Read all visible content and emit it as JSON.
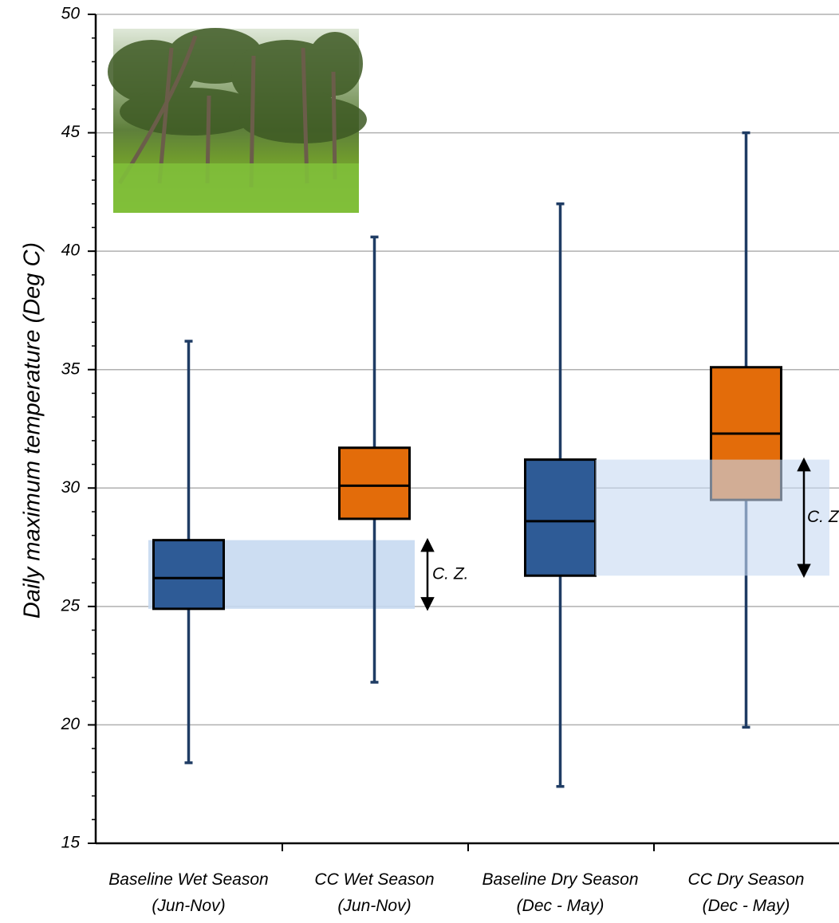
{
  "chart_data": {
    "type": "box",
    "y_label": "Daily maximum temperature (Deg C)",
    "categories": [
      [
        "Baseline Wet Season",
        "(Jun-Nov)"
      ],
      [
        "CC Wet Season",
        "(Jun-Nov)"
      ],
      [
        "Baseline Dry Season",
        "(Dec - May)"
      ],
      [
        "CC Dry Season",
        "(Dec - May)"
      ]
    ],
    "boxes": [
      {
        "color": "#2e5b96",
        "min": 18.4,
        "q1": 24.9,
        "median": 26.2,
        "q3": 27.8,
        "max": 36.2
      },
      {
        "color": "#e36c0a",
        "min": 21.8,
        "q1": 28.7,
        "median": 30.1,
        "q3": 31.7,
        "max": 40.6
      },
      {
        "color": "#2e5b96",
        "min": 17.4,
        "q1": 26.3,
        "median": 28.6,
        "q3": 31.2,
        "max": 42.0
      },
      {
        "color": "#e36c0a",
        "min": 19.9,
        "q1": 29.5,
        "median": 32.3,
        "q3": 35.1,
        "max": 45.0
      }
    ],
    "whisker_color": "#1f3c64",
    "band_color": "#c6d9f1",
    "annotations": [
      "C. Z.",
      "C. Z"
    ],
    "ylim": [
      15,
      50
    ],
    "yticks": [
      15,
      20,
      25,
      30,
      35,
      40,
      45,
      50
    ],
    "yminorticks": [
      15,
      16,
      17,
      18,
      19,
      20,
      21,
      22,
      23,
      24,
      25,
      26,
      27,
      28,
      29,
      30,
      31,
      32,
      33,
      34,
      35,
      36,
      37,
      38,
      39,
      40,
      41,
      42,
      43,
      44,
      45,
      46,
      47,
      48,
      49,
      50
    ],
    "grid": true
  }
}
